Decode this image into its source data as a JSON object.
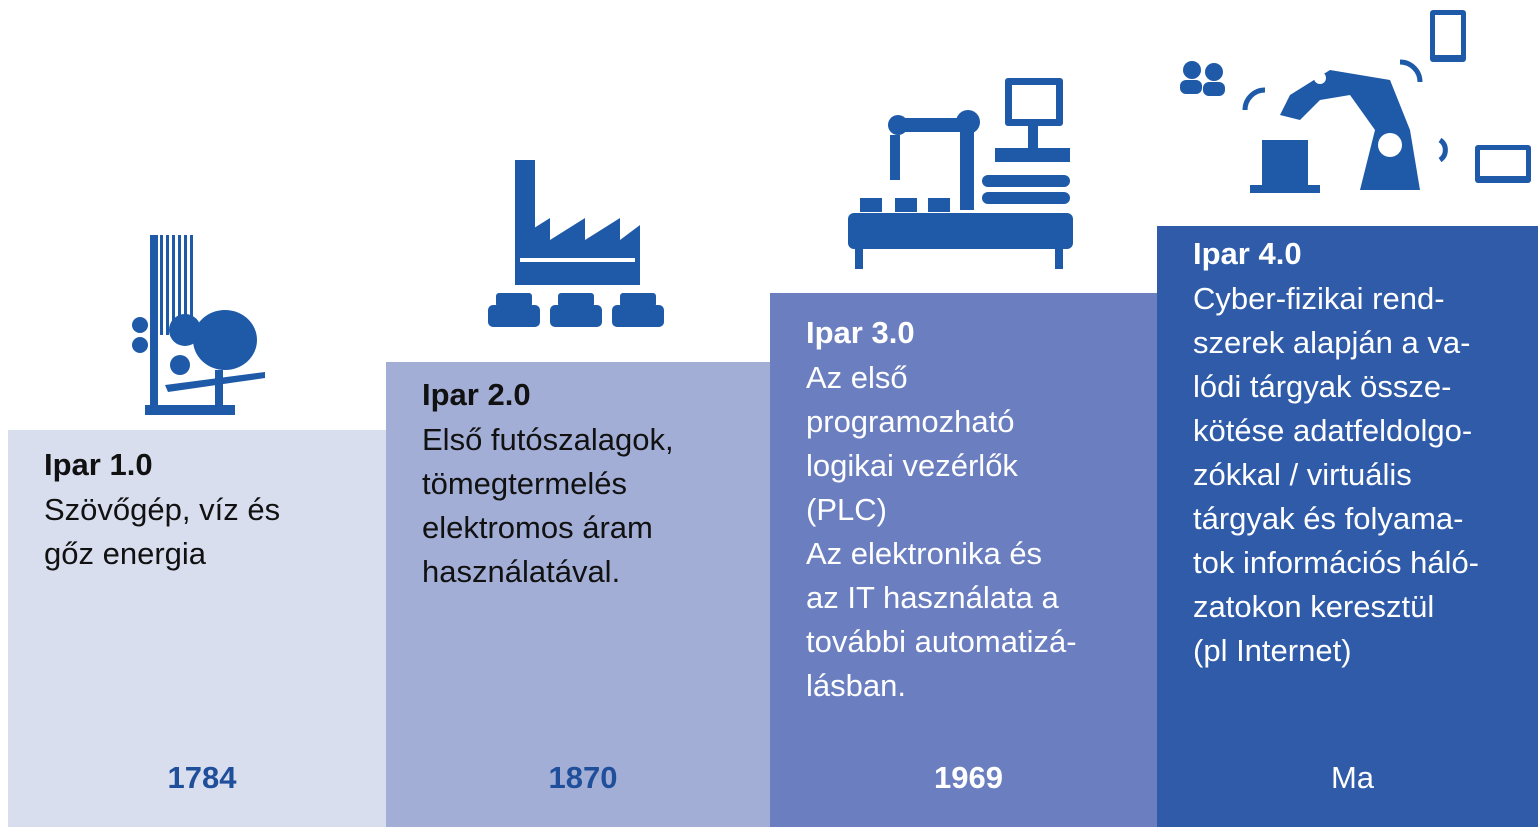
{
  "steps": [
    {
      "title": "Ipar 1.0",
      "lines": [
        "Szövőgép, víz és",
        "gőz energia"
      ],
      "year": "1784"
    },
    {
      "title": "Ipar 2.0",
      "lines": [
        "Első futószalagok,",
        "tömegtermelés",
        "elektromos áram",
        "használatával."
      ],
      "year": "1870"
    },
    {
      "title": "Ipar 3.0",
      "lines": [
        "Az első",
        "programozható",
        "logikai vezérlők",
        "(PLC)",
        "Az elektronika és",
        "az IT használata a",
        "további automatizá-",
        "lásban."
      ],
      "year": "1969"
    },
    {
      "title": "Ipar 4.0",
      "lines": [
        "Cyber-fizikai rend-",
        "szerek alapján a va-",
        "lódi tárgyak össze-",
        "kötése adatfeldolgo-",
        "zókkal / virtuális",
        "tárgyak és folyama-",
        "tok információs háló-",
        "zatokon keresztül",
        "(pl Internet)"
      ],
      "year": "Ma"
    }
  ]
}
